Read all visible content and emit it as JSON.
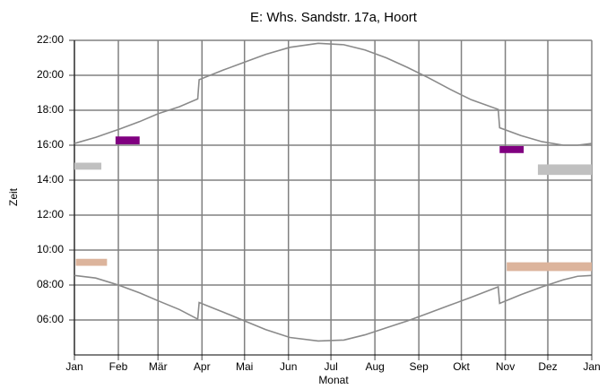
{
  "chart_data": {
    "type": "line",
    "title": "E: Whs. Sandstr. 17a, Hoort",
    "x_label": "Monat",
    "y_label": "Zeit",
    "xlim": [
      0,
      365
    ],
    "ylim": [
      4,
      22
    ],
    "xticks": [
      {
        "value": 0,
        "label": "Jan"
      },
      {
        "value": 31,
        "label": "Feb"
      },
      {
        "value": 59,
        "label": "Mär"
      },
      {
        "value": 90,
        "label": "Apr"
      },
      {
        "value": 120,
        "label": "Mai"
      },
      {
        "value": 151,
        "label": "Jun"
      },
      {
        "value": 181,
        "label": "Jul"
      },
      {
        "value": 212,
        "label": "Aug"
      },
      {
        "value": 243,
        "label": "Sep"
      },
      {
        "value": 273,
        "label": "Okt"
      },
      {
        "value": 304,
        "label": "Nov"
      },
      {
        "value": 334,
        "label": "Dez"
      },
      {
        "value": 365,
        "label": "Jan"
      }
    ],
    "yticks": [
      {
        "value": 6,
        "label": "06:00"
      },
      {
        "value": 8,
        "label": "08:00"
      },
      {
        "value": 10,
        "label": "10:00"
      },
      {
        "value": 12,
        "label": "12:00"
      },
      {
        "value": 14,
        "label": "14:00"
      },
      {
        "value": 16,
        "label": "16:00"
      },
      {
        "value": 18,
        "label": "18:00"
      },
      {
        "value": 20,
        "label": "20:00"
      },
      {
        "value": 22,
        "label": "22:00"
      }
    ],
    "grid": true,
    "grid_color": "#808080",
    "x": [
      0,
      15,
      31,
      46,
      59,
      74,
      87,
      88,
      105,
      120,
      135,
      152,
      172,
      190,
      205,
      220,
      235,
      250,
      265,
      280,
      299,
      300,
      315,
      330,
      345,
      355,
      365
    ],
    "series": [
      {
        "color": "#8a8a8a",
        "values": [
          16.1,
          16.45,
          16.9,
          17.35,
          17.8,
          18.2,
          18.65,
          19.75,
          20.3,
          20.75,
          21.2,
          21.6,
          21.83,
          21.75,
          21.45,
          21.0,
          20.45,
          19.85,
          19.2,
          18.6,
          18.05,
          17.0,
          16.55,
          16.2,
          16.0,
          16.0,
          16.1
        ]
      },
      {
        "color": "#8a8a8a",
        "values": [
          8.55,
          8.4,
          8.0,
          7.55,
          7.1,
          6.6,
          6.05,
          7.0,
          6.45,
          5.95,
          5.45,
          5.0,
          4.8,
          4.85,
          5.15,
          5.55,
          5.95,
          6.4,
          6.85,
          7.3,
          7.9,
          6.95,
          7.45,
          7.9,
          8.3,
          8.5,
          8.55
        ]
      }
    ],
    "patches": [
      {
        "color": "#c0c0c0",
        "x": [
          0,
          19
        ],
        "y": [
          14.6,
          15.0
        ]
      },
      {
        "color": "#800080",
        "x": [
          29,
          46
        ],
        "y": [
          16.05,
          16.5
        ]
      },
      {
        "color": "#dcb49c",
        "x": [
          1,
          23
        ],
        "y": [
          9.1,
          9.5
        ]
      },
      {
        "color": "#800080",
        "x": [
          300,
          317
        ],
        "y": [
          15.55,
          15.95
        ]
      },
      {
        "color": "#c0c0c0",
        "x": [
          327,
          365
        ],
        "y": [
          14.3,
          14.9
        ]
      },
      {
        "color": "#dcb49c",
        "x": [
          305,
          365
        ],
        "y": [
          8.8,
          9.3
        ]
      }
    ]
  }
}
